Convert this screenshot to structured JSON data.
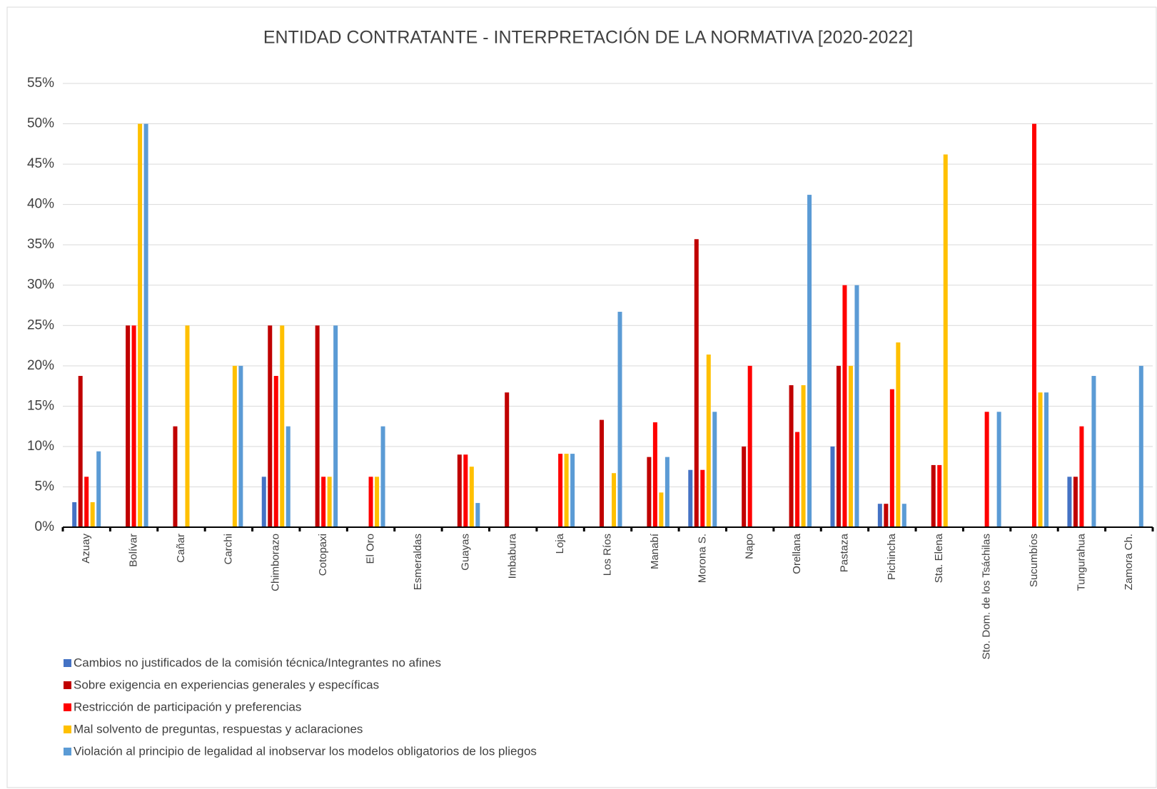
{
  "chart_data": {
    "type": "bar",
    "title": "ENTIDAD CONTRATANTE - INTERPRETACIÓN DE LA NORMATIVA [2020-2022]",
    "categories": [
      "Azuay",
      "Bolívar",
      "Cañar",
      "Carchi",
      "Chimborazo",
      "Cotopaxi",
      "El Oro",
      "Esmeraldas",
      "Guayas",
      "Imbabura",
      "Loja",
      "Los Ríos",
      "Manabí",
      "Morona S.",
      "Napo",
      "Orellana",
      "Pastaza",
      "Pichincha",
      "Sta. Elena",
      "Sto. Dom. de los Tsáchilas",
      "Sucumbíos",
      "Tungurahua",
      "Zamora Ch."
    ],
    "series": [
      {
        "name": "Cambios no justificados de la comisión técnica/Integrantes no afines",
        "color": "#4472c4",
        "values": [
          3.1,
          0,
          0,
          0,
          6.25,
          0,
          0,
          0,
          0,
          0,
          0,
          0,
          0,
          7.1,
          0,
          0,
          10,
          2.9,
          0,
          0,
          0,
          6.25,
          0
        ]
      },
      {
        "name": "Sobre exigencia en experiencias generales y específicas",
        "color": "#c00000",
        "values": [
          18.75,
          25,
          12.5,
          0,
          25,
          25,
          0,
          0,
          9,
          16.7,
          0,
          13.3,
          8.7,
          35.7,
          10,
          17.6,
          20,
          2.9,
          7.7,
          0,
          0,
          6.25,
          0
        ]
      },
      {
        "name": "Restricción de participación y preferencias",
        "color": "#ff0000",
        "values": [
          6.25,
          25,
          0,
          0,
          18.75,
          6.25,
          6.25,
          0,
          9,
          0,
          9.1,
          0,
          13,
          7.1,
          20,
          11.8,
          30,
          17.1,
          7.7,
          14.3,
          50,
          12.5,
          0
        ]
      },
      {
        "name": "Mal solvento de preguntas, respuestas y aclaraciones",
        "color": "#ffc000",
        "values": [
          3.1,
          50,
          25,
          20,
          25,
          6.25,
          6.25,
          0,
          7.5,
          0,
          9.1,
          6.7,
          4.3,
          21.4,
          0,
          17.6,
          20,
          22.9,
          46.2,
          0,
          16.7,
          0,
          0
        ]
      },
      {
        "name": "Violación al principio de legalidad al inobservar los modelos obligatorios de los pliegos",
        "color": "#5b9bd5",
        "values": [
          9.4,
          50,
          0,
          20,
          12.5,
          25,
          12.5,
          0,
          3,
          0,
          9.1,
          26.7,
          8.7,
          14.3,
          0,
          41.2,
          30,
          2.9,
          0,
          14.3,
          16.7,
          18.75,
          20
        ]
      }
    ],
    "ylim": [
      0,
      55
    ],
    "yticks": [
      {
        "value": 0,
        "label": "0%"
      },
      {
        "value": 5,
        "label": "5%"
      },
      {
        "value": 10,
        "label": "10%"
      },
      {
        "value": 15,
        "label": "15%"
      },
      {
        "value": 20,
        "label": "20%"
      },
      {
        "value": 25,
        "label": "25%"
      },
      {
        "value": 30,
        "label": "30%"
      },
      {
        "value": 35,
        "label": "35%"
      },
      {
        "value": 40,
        "label": "40%"
      },
      {
        "value": 45,
        "label": "45%"
      },
      {
        "value": 50,
        "label": "50%"
      },
      {
        "value": 55,
        "label": "55%"
      }
    ],
    "grid": true
  }
}
